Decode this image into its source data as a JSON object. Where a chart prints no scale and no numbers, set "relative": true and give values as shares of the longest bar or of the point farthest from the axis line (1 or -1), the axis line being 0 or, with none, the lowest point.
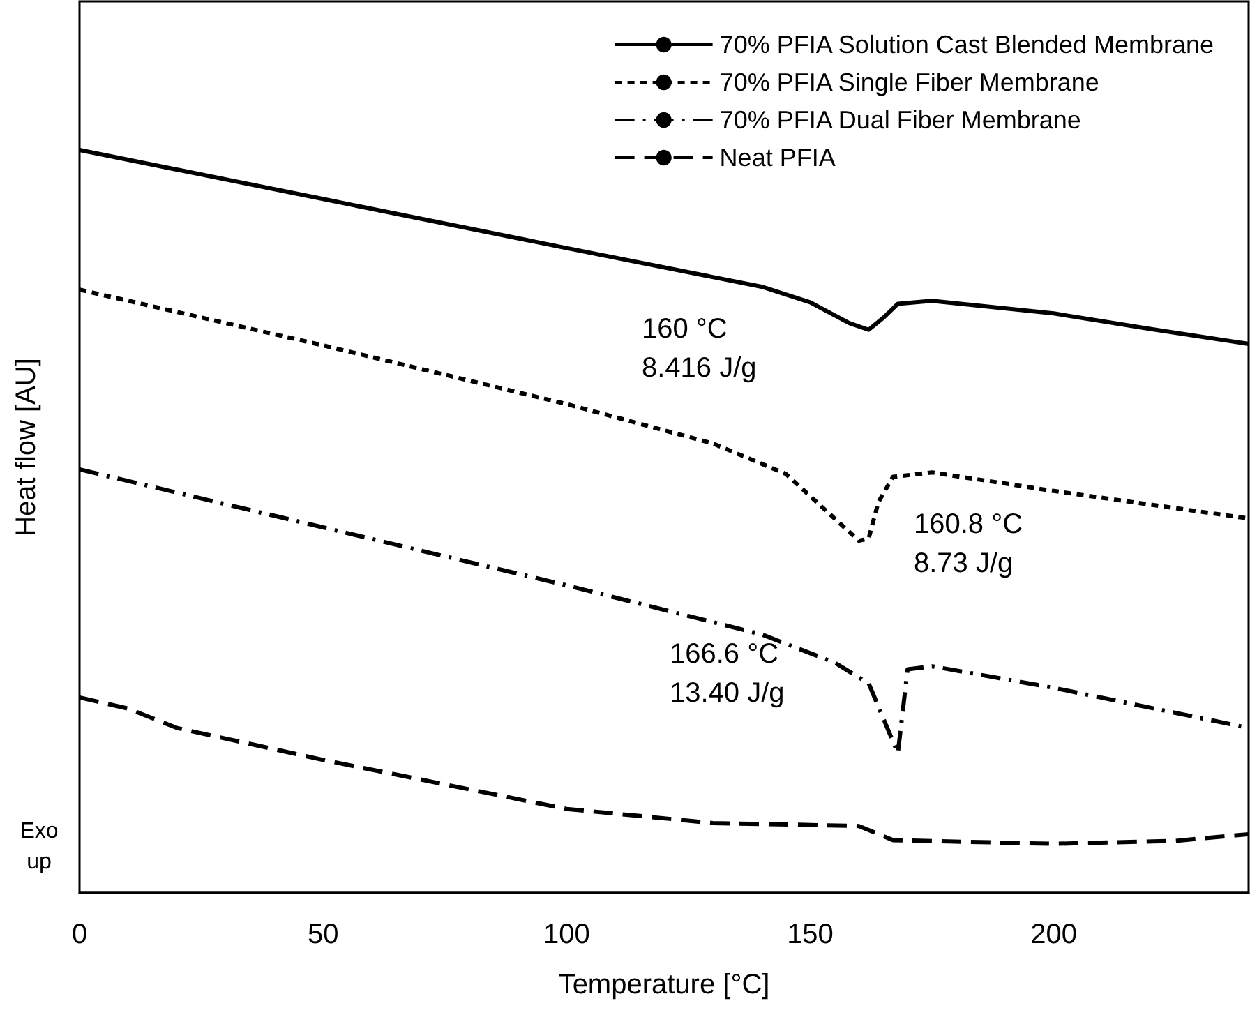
{
  "chart_data": {
    "type": "line",
    "relative": true,
    "xlabel": "Temperature [°C]",
    "ylabel": "Heat flow [AU]",
    "xlim": [
      0,
      240
    ],
    "xticks": [
      0,
      50,
      100,
      150,
      200
    ],
    "legend": "top right",
    "marker": "none",
    "series": [
      {
        "name": "70% PFIA Solution Cast Blended Membrane",
        "color": "#000000",
        "line_style": "solid",
        "x": [
          0,
          50,
          100,
          140,
          150,
          158,
          162,
          165,
          168,
          175,
          200,
          220,
          240
        ],
        "values": [
          1.0,
          0.934,
          0.868,
          0.816,
          0.795,
          0.767,
          0.758,
          0.774,
          0.793,
          0.797,
          0.78,
          0.759,
          0.739
        ]
      },
      {
        "name": "70% PFIA Single Fiber Membrane",
        "color": "#000000",
        "line_style": "dotted",
        "x": [
          0,
          50,
          100,
          130,
          145,
          155,
          160,
          162,
          164,
          167,
          175,
          200,
          240
        ],
        "values": [
          0.812,
          0.737,
          0.658,
          0.605,
          0.564,
          0.504,
          0.474,
          0.477,
          0.526,
          0.56,
          0.566,
          0.541,
          0.504
        ]
      },
      {
        "name": "70% PFIA Dual Fiber Membrane",
        "color": "#000000",
        "line_style": "dashdot",
        "x": [
          0,
          50,
          100,
          140,
          155,
          162,
          168,
          170,
          175,
          200,
          240
        ],
        "values": [
          0.57,
          0.492,
          0.414,
          0.348,
          0.31,
          0.282,
          0.188,
          0.301,
          0.305,
          0.276,
          0.222
        ]
      },
      {
        "name": "Neat PFIA",
        "color": "#000000",
        "line_style": "dashed",
        "x": [
          0,
          10,
          20,
          50,
          100,
          130,
          160,
          167,
          200,
          225,
          240
        ],
        "values": [
          0.263,
          0.248,
          0.222,
          0.179,
          0.113,
          0.094,
          0.09,
          0.071,
          0.066,
          0.07,
          0.079
        ]
      }
    ],
    "annotations": [
      "160 °C\n8.416 J/g",
      "160.8 °C\n8.73 J/g",
      "166.6 °C\n13.40 J/g",
      "Exo\nup"
    ]
  }
}
